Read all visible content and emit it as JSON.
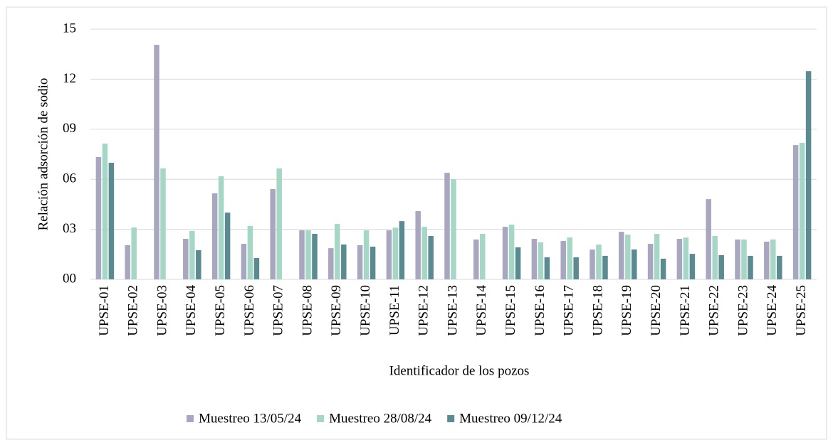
{
  "chart_data": {
    "type": "bar",
    "x_label": "Identificador de los pozos",
    "y_label": "Relación adsorción de sodio",
    "categories": [
      "UPSE-01",
      "UPSE-02",
      "UPSE-03",
      "UPSE-04",
      "UPSE-05",
      "UPSE-06",
      "UPSE-07",
      "UPSE-08",
      "UPSE-09",
      "UPSE-10",
      "UPSE-11",
      "UPSE-12",
      "UPSE-13",
      "UPSE-14",
      "UPSE-15",
      "UPSE-16",
      "UPSE-17",
      "UPSE-18",
      "UPSE-19",
      "UPSE-20",
      "UPSE-21",
      "UPSE-22",
      "UPSE-23",
      "UPSE-24",
      "UPSE-25"
    ],
    "series": [
      {
        "name": "Muestreo 13/05/24",
        "color": "#a9a7bf",
        "values": [
          7.33,
          2.05,
          14.06,
          2.43,
          5.16,
          2.13,
          5.41,
          2.94,
          1.87,
          2.05,
          2.94,
          4.09,
          6.39,
          2.39,
          3.15,
          2.43,
          2.3,
          1.79,
          2.85,
          2.13,
          2.43,
          4.81,
          2.39,
          2.26,
          8.05
        ]
      },
      {
        "name": "Muestreo 28/08/24",
        "color": "#a6d7c6",
        "values": [
          8.14,
          3.11,
          6.65,
          2.9,
          6.18,
          3.2,
          6.65,
          2.94,
          3.32,
          2.94,
          3.1,
          3.15,
          6.0,
          2.73,
          3.28,
          2.22,
          2.51,
          2.09,
          2.68,
          2.73,
          2.51,
          2.6,
          2.39,
          2.39,
          8.18
        ]
      },
      {
        "name": "Muestreo 09/12/24",
        "color": "#5b8a91",
        "values": [
          6.99,
          null,
          null,
          1.75,
          4.0,
          1.28,
          null,
          2.73,
          2.09,
          1.96,
          3.49,
          2.6,
          null,
          null,
          1.92,
          1.32,
          1.32,
          1.41,
          1.79,
          1.24,
          1.53,
          1.45,
          1.41,
          1.41,
          12.48
        ]
      }
    ],
    "ylim": [
      0,
      15
    ],
    "yticks": [
      {
        "value": 0,
        "label": "00"
      },
      {
        "value": 3,
        "label": "03"
      },
      {
        "value": 6,
        "label": "06"
      },
      {
        "value": 9,
        "label": "09"
      },
      12,
      15
    ],
    "grid": true,
    "legend": "bottom"
  }
}
